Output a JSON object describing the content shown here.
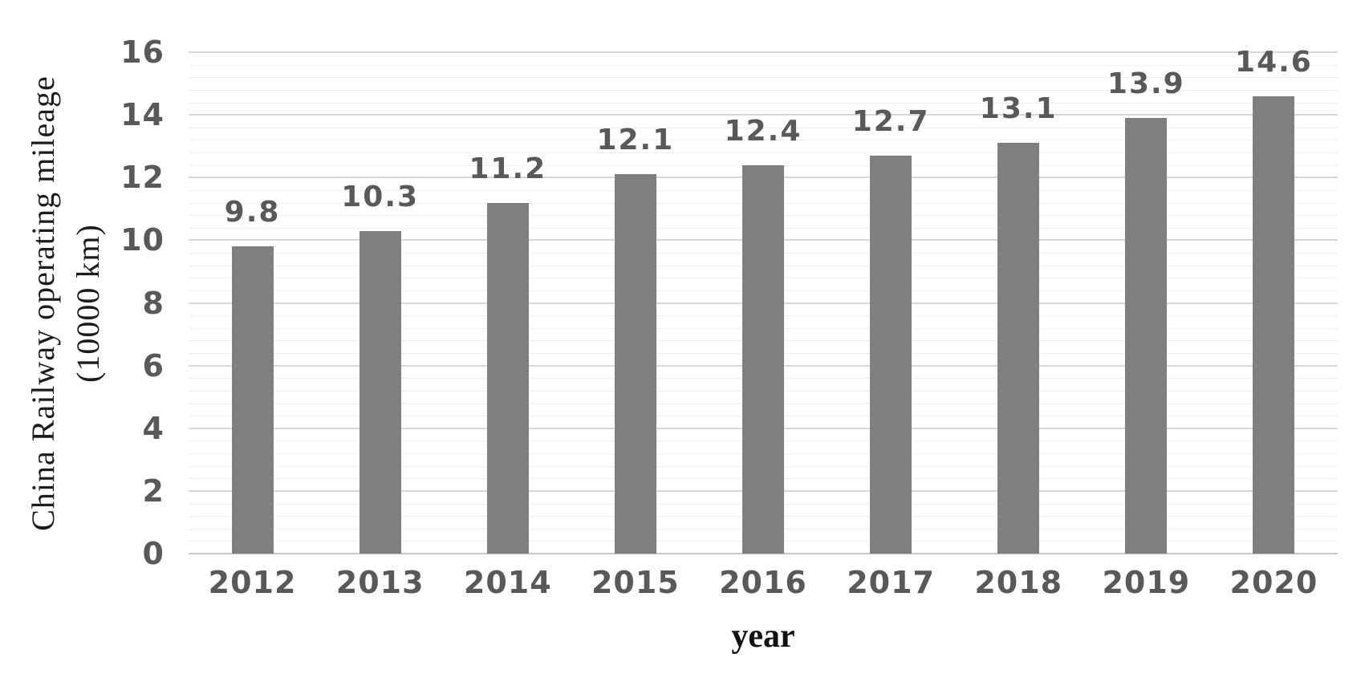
{
  "chart_data": {
    "type": "bar",
    "title": "",
    "xlabel": "year",
    "ylabel": "China Railway operating mileage (10000 km)",
    "ylabel_lines": [
      "China Railway operating mileage",
      "(10000 km)"
    ],
    "categories": [
      "2012",
      "2013",
      "2014",
      "2015",
      "2016",
      "2017",
      "2018",
      "2019",
      "2020"
    ],
    "values": [
      9.8,
      10.3,
      11.2,
      12.1,
      12.4,
      12.7,
      13.1,
      13.9,
      14.6
    ],
    "data_labels": [
      "9.8",
      "10.3",
      "11.2",
      "12.1",
      "12.4",
      "12.7",
      "13.1",
      "13.9",
      "14.6"
    ],
    "ylim": [
      0,
      16
    ],
    "y_major_step": 2,
    "y_minor_step": 0.4,
    "y_tick_labels": [
      "0",
      "2",
      "4",
      "6",
      "8",
      "10",
      "12",
      "14",
      "16"
    ],
    "grid": "horizontal major + minor, no vertical gridlines",
    "legend_position": "none",
    "colors": {
      "bar": "#7f7f7f",
      "major_gridline": "#d8d8d8",
      "minor_gridline": "#efefef",
      "axis_line": "#c7c7c7",
      "tick_label": "#595959",
      "data_label": "#595959",
      "axis_title_text": "#1c1c1c",
      "background": "#ffffff"
    }
  }
}
